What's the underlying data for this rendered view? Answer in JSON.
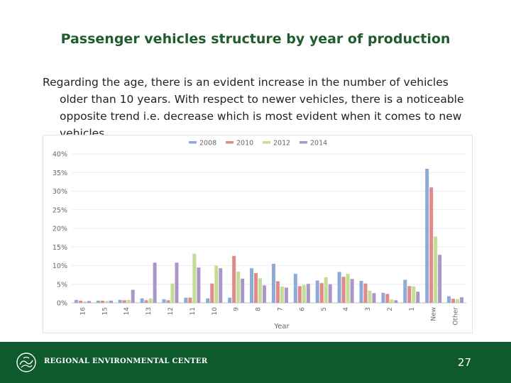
{
  "slide": {
    "title": "Passenger vehicles structure by year of production",
    "body": "Regarding the age, there is an evident increase in the number of vehicles older than 10 years. With respect to newer vehicles, there is a noticeable opposite trend i.e. decrease which is most evident when it comes to new vehicles.",
    "page_number": "27"
  },
  "footer": {
    "org_name": "REGIONAL ENVIRONMENTAL CENTER",
    "color": "#0f5a2c"
  },
  "chart_data": {
    "type": "bar",
    "title": "",
    "xlabel": "Year",
    "ylabel": "",
    "ylim": [
      0,
      40
    ],
    "yticks": [
      "0%",
      "5%",
      "10%",
      "15%",
      "20%",
      "25%",
      "30%",
      "35%",
      "40%"
    ],
    "categories": [
      "16",
      "15",
      "14",
      "13",
      "12",
      "11",
      "10",
      "9",
      "8",
      "7",
      "6",
      "5",
      "4",
      "3",
      "2",
      "1",
      "New",
      "Other"
    ],
    "legend_position": "top",
    "series": [
      {
        "name": "2008",
        "color": "#8eaad6",
        "values": [
          0.8,
          0.6,
          0.8,
          1.2,
          1.0,
          1.4,
          1.2,
          1.4,
          9.3,
          10.5,
          7.8,
          6.0,
          8.3,
          5.9,
          2.7,
          6.2,
          36.0,
          1.8
        ]
      },
      {
        "name": "2010",
        "color": "#e08b8a",
        "values": [
          0.6,
          0.6,
          0.7,
          0.7,
          0.7,
          1.4,
          5.2,
          12.6,
          8.0,
          5.8,
          4.5,
          5.3,
          7.0,
          5.2,
          2.4,
          4.5,
          31.0,
          1.1
        ]
      },
      {
        "name": "2012",
        "color": "#c4dd94",
        "values": [
          0.4,
          0.5,
          0.8,
          1.2,
          5.2,
          13.2,
          10.0,
          8.4,
          6.6,
          4.4,
          4.8,
          6.9,
          7.8,
          3.3,
          0.9,
          4.4,
          17.8,
          1.0
        ]
      },
      {
        "name": "2014",
        "color": "#aa97c8",
        "values": [
          0.5,
          0.6,
          3.5,
          10.8,
          10.8,
          9.5,
          9.3,
          6.5,
          4.7,
          4.1,
          5.1,
          5.0,
          6.4,
          2.6,
          0.7,
          3.0,
          12.9,
          1.5
        ]
      }
    ]
  }
}
